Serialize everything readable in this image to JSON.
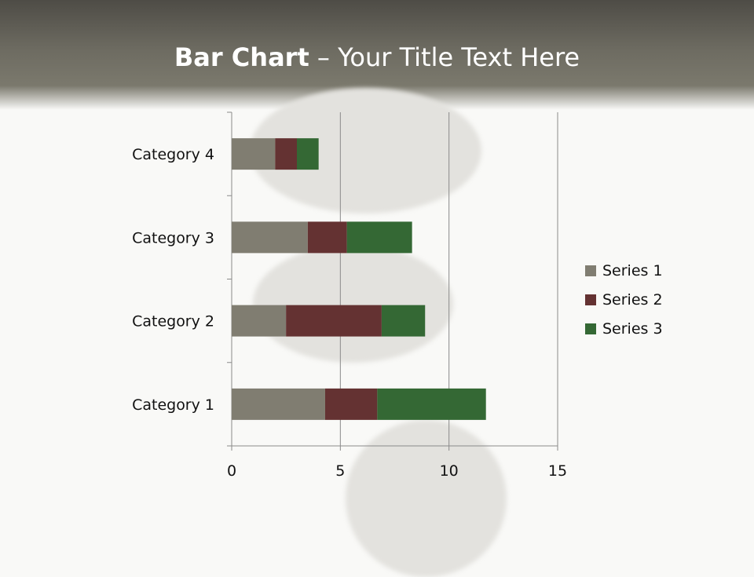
{
  "slide": {
    "title_bold": "Bar Chart",
    "title_rest": " – Your Title Text Here"
  },
  "chart_data": {
    "type": "bar",
    "orientation": "horizontal",
    "stacked": true,
    "categories": [
      "Category 1",
      "Category 2",
      "Category 3",
      "Category 4"
    ],
    "series": [
      {
        "name": "Series 1",
        "values": [
          4.3,
          2.5,
          3.5,
          2
        ],
        "color": "#807d71"
      },
      {
        "name": "Series 2",
        "values": [
          2.4,
          4.4,
          1.8,
          1
        ],
        "color": "#643232"
      },
      {
        "name": "Series 3",
        "values": [
          5,
          2,
          3,
          1
        ],
        "color": "#346834"
      }
    ],
    "xlim": [
      0,
      15
    ],
    "xticks": [
      "0",
      "5",
      "10",
      "15"
    ],
    "grid": "vertical major",
    "legend": "right"
  }
}
